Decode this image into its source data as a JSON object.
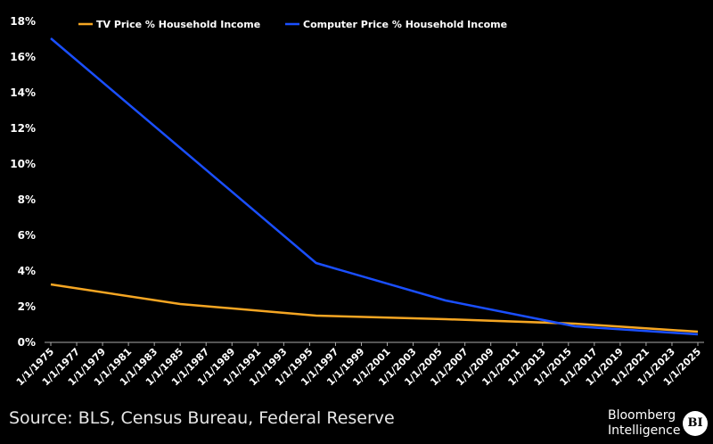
{
  "chart_data": {
    "type": "line",
    "title": "",
    "xlabel": "",
    "ylabel": "",
    "ylim": [
      0,
      18
    ],
    "xlim": [
      1975,
      2025
    ],
    "y_ticks": [
      "0%",
      "2%",
      "4%",
      "6%",
      "8%",
      "10%",
      "12%",
      "14%",
      "16%",
      "18%"
    ],
    "x_ticks": [
      "1/1/1975",
      "1/1/1977",
      "1/1/1979",
      "1/1/1981",
      "1/1/1983",
      "1/1/1985",
      "1/1/1987",
      "1/1/1989",
      "1/1/1991",
      "1/1/1993",
      "1/1/1995",
      "1/1/1997",
      "1/1/1999",
      "1/1/2001",
      "1/1/2003",
      "1/1/2005",
      "1/1/2007",
      "1/1/2009",
      "1/1/2011",
      "1/1/2013",
      "1/1/2015",
      "1/1/2017",
      "1/1/2019",
      "1/1/2021",
      "1/1/2023",
      "1/1/2025"
    ],
    "legend_position": "top-left",
    "grid": false,
    "series": [
      {
        "name": "TV Price % Household Income",
        "color": "#f5a623",
        "x": [
          1975,
          1985,
          1995.5,
          2005.5,
          2015.5,
          2025
        ],
        "values": [
          3.2,
          2.1,
          1.45,
          1.25,
          1.0,
          0.55
        ]
      },
      {
        "name": "Computer Price % Household Income",
        "color": "#1a4fff",
        "x": [
          1975,
          1995.5,
          2005.5,
          2015.5,
          2025
        ],
        "values": [
          17.0,
          4.4,
          2.3,
          0.85,
          0.4
        ]
      }
    ]
  },
  "footer": {
    "source": "Source: BLS, Census Bureau, Federal Reserve",
    "logo_line1": "Bloomberg",
    "logo_line2": "Intelligence",
    "logo_badge": "BI"
  }
}
